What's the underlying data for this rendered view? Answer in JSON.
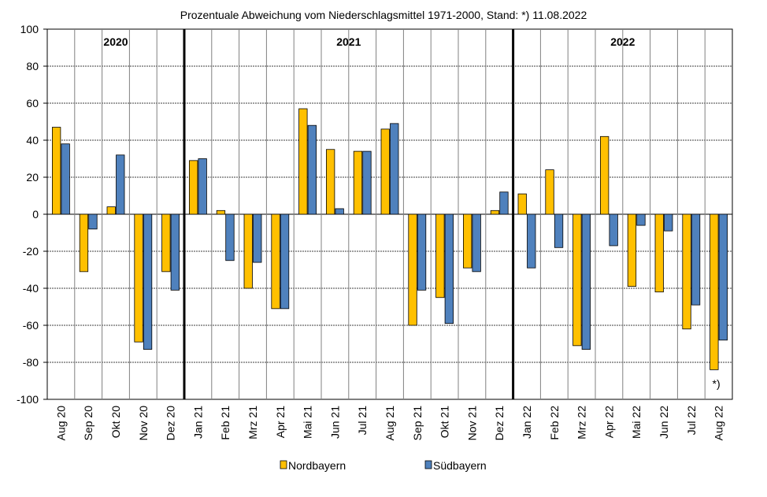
{
  "chart_data": {
    "type": "bar",
    "title": "Prozentuale Abweichung vom Niederschlagsmittel 1971-2000, Stand: *) 11.08.2022",
    "xlabel": "",
    "ylabel": "",
    "ylim": [
      -100,
      100
    ],
    "yticks": [
      -100,
      -80,
      -60,
      -40,
      -20,
      0,
      20,
      40,
      60,
      80,
      100
    ],
    "grid": true,
    "legend_position": "bottom",
    "categories": [
      "Aug 20",
      "Sep 20",
      "Okt 20",
      "Nov 20",
      "Dez 20",
      "Jan 21",
      "Feb 21",
      "Mrz 21",
      "Apr 21",
      "Mai 21",
      "Jun 21",
      "Jul 21",
      "Aug 21",
      "Sep 21",
      "Okt 21",
      "Nov 21",
      "Dez 21",
      "Jan 22",
      "Feb 22",
      "Mrz 22",
      "Apr 22",
      "Mai 22",
      "Jun 22",
      "Jul 22",
      "Aug 22"
    ],
    "series": [
      {
        "name": "Nordbayern",
        "color": "#FFC000",
        "values": [
          47,
          -31,
          4,
          -69,
          -31,
          29,
          2,
          -40,
          -51,
          57,
          35,
          34,
          46,
          -60,
          -45,
          -29,
          2,
          11,
          24,
          -71,
          42,
          -39,
          -42,
          -62,
          -84
        ]
      },
      {
        "name": "Südbayern",
        "color": "#4F81BD",
        "values": [
          38,
          -8,
          32,
          -73,
          -41,
          30,
          -25,
          -26,
          -51,
          48,
          3,
          34,
          49,
          -41,
          -59,
          -31,
          12,
          -29,
          -18,
          -73,
          -17,
          -6,
          -9,
          -49,
          -68
        ]
      }
    ],
    "year_groups": [
      {
        "label": "2020",
        "start": 0,
        "end": 4
      },
      {
        "label": "2021",
        "start": 5,
        "end": 16
      },
      {
        "label": "2022",
        "start": 17,
        "end": 24
      }
    ],
    "annotation": "*)"
  }
}
